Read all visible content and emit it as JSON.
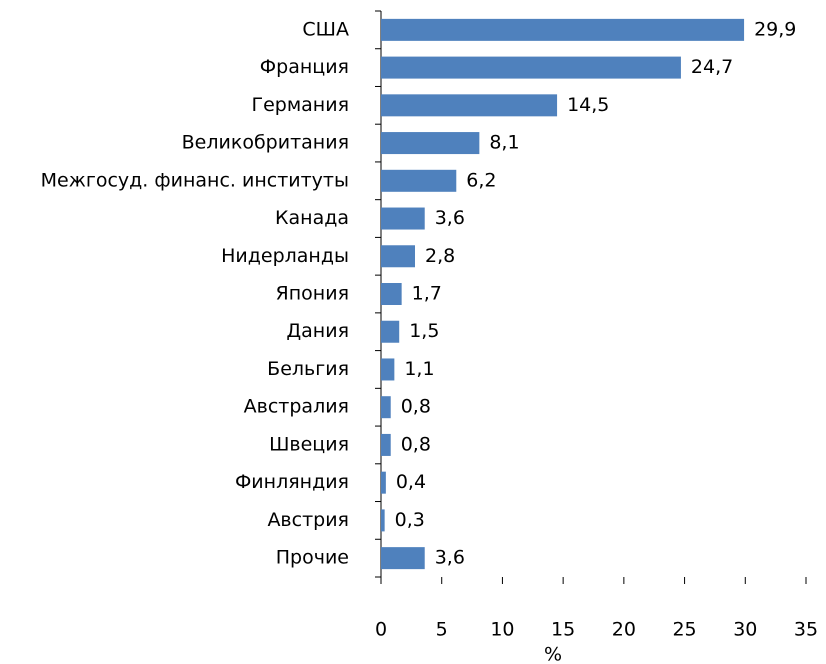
{
  "chart_data": {
    "type": "bar",
    "orientation": "horizontal",
    "categories": [
      "США",
      "Франция",
      "Германия",
      "Великобритания",
      "Межгосуд. финанс. институты",
      "Канада",
      "Нидерланды",
      "Япония",
      "Дания",
      "Бельгия",
      "Австралия",
      "Швеция",
      "Финляндия",
      "Австрия",
      "Прочие"
    ],
    "values": [
      29.9,
      24.7,
      14.5,
      8.1,
      6.2,
      3.6,
      2.8,
      1.7,
      1.5,
      1.1,
      0.8,
      0.8,
      0.4,
      0.3,
      3.6
    ],
    "value_labels": [
      "29,9",
      "24,7",
      "14,5",
      "8,1",
      "6,2",
      "3,6",
      "2,8",
      "1,7",
      "1,5",
      "1,1",
      "0,8",
      "0,8",
      "0,4",
      "0,3",
      "3,6"
    ],
    "color": "#4f81bd",
    "xlim": [
      0,
      35
    ],
    "xticks": [
      0,
      5,
      10,
      15,
      20,
      25,
      30,
      35
    ],
    "x_label": "%",
    "grid": false
  }
}
